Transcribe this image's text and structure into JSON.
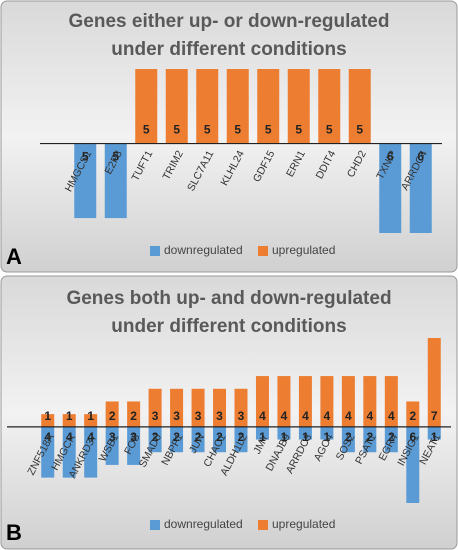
{
  "chart_data": [
    {
      "type": "bar",
      "panel": "A",
      "title": [
        "Genes either up- or down-regulated",
        "under different conditions"
      ],
      "categories": [
        "HMGCS1",
        "E2F8",
        "TUFT1",
        "TRIM2",
        "SLC7A11",
        "KLHL24",
        "GDF15",
        "ERN1",
        "DDIT4",
        "CHD2",
        "TXNIP",
        "ARRDC4"
      ],
      "series": [
        {
          "name": "downregulated",
          "color": "#5b9bd5",
          "values": [
            -5,
            -5,
            null,
            null,
            null,
            null,
            null,
            null,
            null,
            null,
            -6,
            -6
          ],
          "value_labels": [
            "5",
            "5",
            null,
            null,
            null,
            null,
            null,
            null,
            null,
            null,
            "6",
            "6"
          ]
        },
        {
          "name": "upregulated",
          "color": "#ed7d31",
          "values": [
            null,
            null,
            5,
            5,
            5,
            5,
            5,
            5,
            5,
            5,
            null,
            null
          ]
        }
      ],
      "ylim": [
        -6,
        5
      ],
      "legend": "bottom"
    },
    {
      "type": "bar",
      "panel": "B",
      "title": [
        "Genes both up- and down-regulated",
        "under different conditions"
      ],
      "categories": [
        "ZNF518A",
        "HMGCR",
        "ANKRD37",
        "WSB1",
        "FOS",
        "SMAD6",
        "NBPF1",
        "JUN",
        "CHAC1",
        "ALDH1L2",
        "JMY",
        "DNAJB9",
        "ARRDC3",
        "AGO4",
        "SOS2",
        "PSAT1",
        "EGR4",
        "INSIG1",
        "NEAT1"
      ],
      "series": [
        {
          "name": "downregulated",
          "color": "#5b9bd5",
          "values": [
            -4,
            -4,
            -4,
            -3,
            -3,
            -2,
            -2,
            -2,
            -2,
            -2,
            -1,
            -1,
            -1,
            -1,
            -2,
            -2,
            -2,
            -6,
            -1
          ],
          "value_labels": [
            "4",
            "4",
            "4",
            "3",
            "3",
            "2",
            "2",
            "2",
            "2",
            "2",
            "1",
            "1",
            "1",
            "1",
            "2",
            "2",
            "2",
            "6",
            "1"
          ]
        },
        {
          "name": "upregulated",
          "color": "#ed7d31",
          "values": [
            1,
            1,
            1,
            2,
            2,
            3,
            3,
            3,
            3,
            3,
            4,
            4,
            4,
            4,
            4,
            4,
            4,
            2,
            7
          ]
        }
      ],
      "ylim": [
        -6,
        7
      ],
      "legend": "bottom"
    }
  ]
}
